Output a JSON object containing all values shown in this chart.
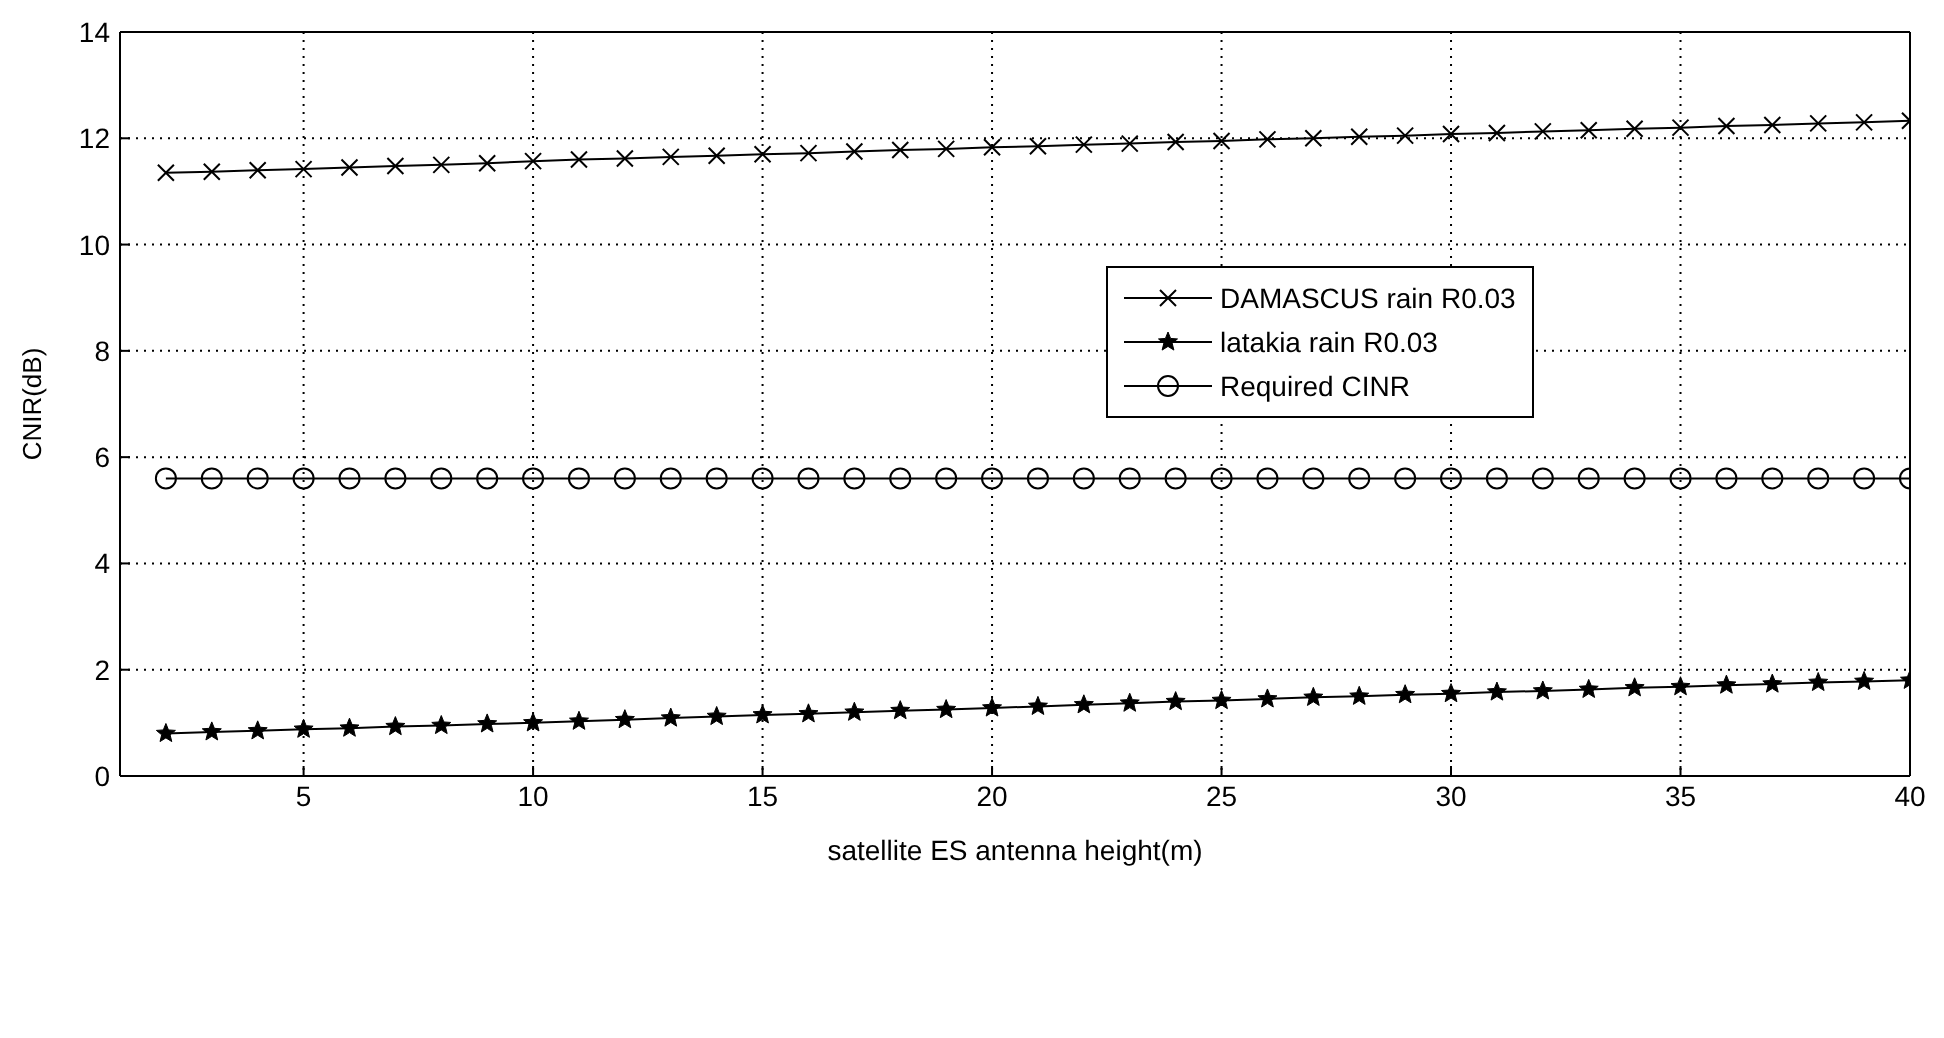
{
  "chart_data": {
    "type": "line",
    "xlabel": "satellite ES antenna height(m)",
    "ylabel": "CNIR(dB)",
    "x": [
      2,
      3,
      4,
      5,
      6,
      7,
      8,
      9,
      10,
      11,
      12,
      13,
      14,
      15,
      16,
      17,
      18,
      19,
      20,
      21,
      22,
      23,
      24,
      25,
      26,
      27,
      28,
      29,
      30,
      31,
      32,
      33,
      34,
      35,
      36,
      37,
      38,
      39,
      40
    ],
    "series": [
      {
        "name": "DAMASCUS rain R0.03",
        "color": "#000000",
        "marker": "cross",
        "values": [
          11.35,
          11.37,
          11.4,
          11.42,
          11.45,
          11.48,
          11.5,
          11.53,
          11.57,
          11.6,
          11.62,
          11.65,
          11.67,
          11.7,
          11.72,
          11.75,
          11.78,
          11.8,
          11.83,
          11.85,
          11.88,
          11.9,
          11.93,
          11.95,
          11.98,
          12.0,
          12.03,
          12.05,
          12.08,
          12.1,
          12.13,
          12.15,
          12.18,
          12.2,
          12.23,
          12.25,
          12.28,
          12.3,
          12.33
        ]
      },
      {
        "name": "latakia rain R0.03",
        "color": "#000000",
        "marker": "star",
        "values": [
          0.8,
          0.83,
          0.85,
          0.88,
          0.9,
          0.93,
          0.95,
          0.98,
          1.0,
          1.03,
          1.06,
          1.09,
          1.12,
          1.15,
          1.17,
          1.2,
          1.23,
          1.25,
          1.28,
          1.31,
          1.34,
          1.37,
          1.4,
          1.42,
          1.45,
          1.48,
          1.5,
          1.53,
          1.55,
          1.58,
          1.6,
          1.63,
          1.66,
          1.68,
          1.71,
          1.73,
          1.76,
          1.78,
          1.8
        ]
      },
      {
        "name": "Required CINR",
        "color": "#000000",
        "marker": "circle",
        "values": [
          5.6,
          5.6,
          5.6,
          5.6,
          5.6,
          5.6,
          5.6,
          5.6,
          5.6,
          5.6,
          5.6,
          5.6,
          5.6,
          5.6,
          5.6,
          5.6,
          5.6,
          5.6,
          5.6,
          5.6,
          5.6,
          5.6,
          5.6,
          5.6,
          5.6,
          5.6,
          5.6,
          5.6,
          5.6,
          5.6,
          5.6,
          5.6,
          5.6,
          5.6,
          5.6,
          5.6,
          5.6,
          5.6,
          5.6
        ]
      }
    ],
    "xlim": [
      1,
      40
    ],
    "xticks": [
      5,
      10,
      15,
      20,
      25,
      30,
      35,
      40
    ],
    "ylim": [
      0,
      14
    ],
    "yticks": [
      0,
      2,
      4,
      6,
      8,
      10,
      12,
      14
    ],
    "grid": true,
    "legend": "right",
    "line_style": "solid"
  }
}
